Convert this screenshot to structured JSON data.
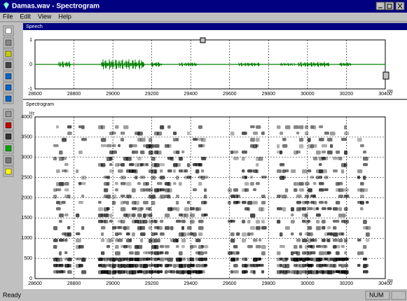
{
  "window": {
    "title": "Damas.wav - Spectrogram"
  },
  "menu": [
    "File",
    "Edit",
    "View",
    "Help"
  ],
  "waveform": {
    "title": "Speech",
    "xlim": [
      28600,
      30400
    ],
    "xticks": [
      28600,
      28800,
      29000,
      29200,
      29400,
      29600,
      29800,
      30000,
      30200,
      30400
    ],
    "x_unit": "ms",
    "ylim": [
      -1,
      1
    ],
    "yticks": [
      -1,
      0,
      1
    ]
  },
  "spectrogram": {
    "title": "Spectrogram",
    "xlim": [
      28600,
      30400
    ],
    "xticks": [
      28600,
      28800,
      29000,
      29200,
      29400,
      29600,
      29800,
      30000,
      30200,
      30400
    ],
    "x_unit": "ms",
    "ylim": [
      0,
      4000
    ],
    "yticks": [
      0,
      500,
      1000,
      1500,
      2000,
      2500,
      3000,
      3500,
      4000
    ],
    "y_unit": "Hz"
  },
  "status": {
    "message": "Ready",
    "indicator": "NUM"
  }
}
